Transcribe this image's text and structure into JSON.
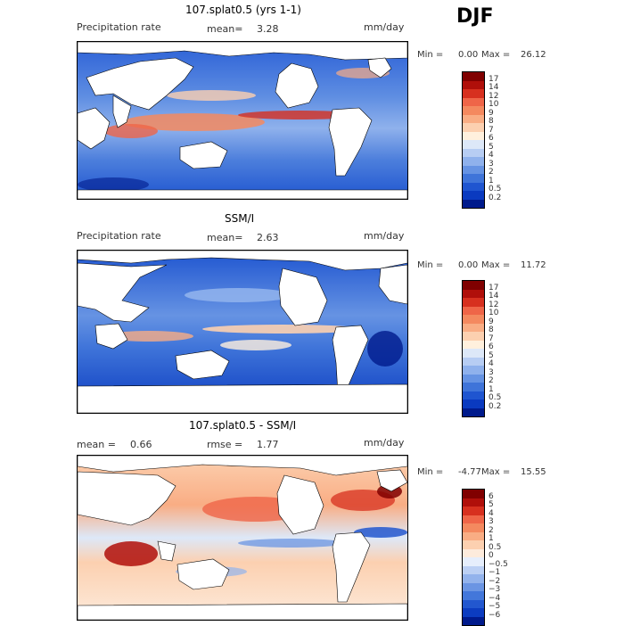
{
  "season": "DJF",
  "panels": [
    {
      "title": "107.splat0.5 (yrs 1-1)",
      "left_label": "Precipitation rate",
      "mid_label": "mean=",
      "mid_value": "3.28",
      "right_label": "mm/day",
      "min_label": "Min =",
      "min_value": "0.00",
      "max_label": "Max =",
      "max_value": "26.12",
      "colorbar": {
        "labels": [
          "17",
          "14",
          "12",
          "10",
          "9",
          "8",
          "7",
          "6",
          "5",
          "4",
          "3",
          "2",
          "1",
          "0.5",
          "0.2"
        ],
        "colors": [
          "#800000",
          "#b00f0a",
          "#d7301f",
          "#ef6548",
          "#f4895f",
          "#f9ad84",
          "#fcd0b0",
          "#fff0dd",
          "#dde8f8",
          "#b7cdf3",
          "#8fb1ec",
          "#6693e3",
          "#3f74d9",
          "#1f55d0",
          "#0a3ac0",
          "#001a8c"
        ]
      }
    },
    {
      "title": "SSM/I",
      "left_label": "Precipitation rate",
      "mid_label": "mean=",
      "mid_value": "2.63",
      "right_label": "mm/day",
      "min_label": "Min =",
      "min_value": "0.00",
      "max_label": "Max =",
      "max_value": "11.72",
      "colorbar": {
        "labels": [
          "17",
          "14",
          "12",
          "10",
          "9",
          "8",
          "7",
          "6",
          "5",
          "4",
          "3",
          "2",
          "1",
          "0.5",
          "0.2"
        ],
        "colors": [
          "#800000",
          "#b00f0a",
          "#d7301f",
          "#ef6548",
          "#f4895f",
          "#f9ad84",
          "#fcd0b0",
          "#fff0dd",
          "#dde8f8",
          "#b7cdf3",
          "#8fb1ec",
          "#6693e3",
          "#3f74d9",
          "#1f55d0",
          "#0a3ac0",
          "#001a8c"
        ]
      }
    },
    {
      "title": "107.splat0.5 - SSM/I",
      "left_label": "mean =",
      "left_value": "0.66",
      "mid_label": "rmse =",
      "mid_value": "1.77",
      "right_label": "mm/day",
      "min_label": "Min =",
      "min_value": "-4.77",
      "max_label": "Max =",
      "max_value": "15.55",
      "colorbar": {
        "labels": [
          "6",
          "5",
          "4",
          "3",
          "2",
          "1",
          "0.5",
          "0",
          "-0.5",
          "-1",
          "-2",
          "-3",
          "-4",
          "-5",
          "-6"
        ],
        "colors": [
          "#800000",
          "#b00f0a",
          "#d7301f",
          "#ef6548",
          "#f4895f",
          "#f9ad84",
          "#fcd0b0",
          "#fdebdc",
          "#e6eefc",
          "#bcd0f4",
          "#93b3ec",
          "#6b95e3",
          "#4377da",
          "#2257cf",
          "#0c3cc0",
          "#001a8c"
        ]
      }
    }
  ],
  "colors": {
    "ocean_dry": "#1f55d0",
    "ocean_mid": "#6693e3",
    "rain_heavy": "#d7301f",
    "land": "#ffffff",
    "coastline": "#000000"
  }
}
